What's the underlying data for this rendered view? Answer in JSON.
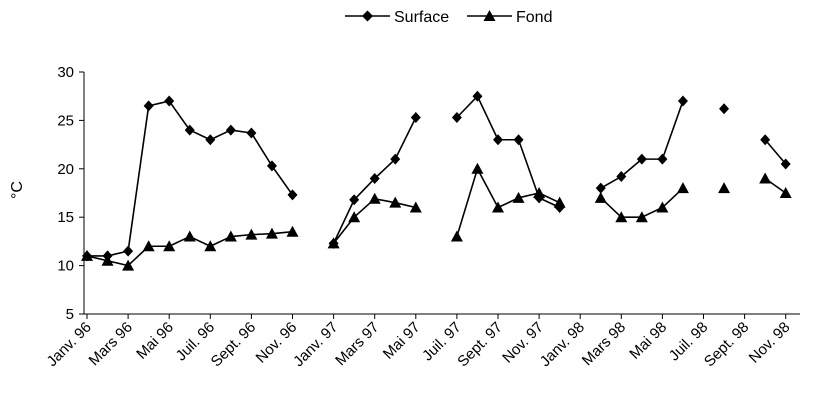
{
  "chart_data": {
    "type": "line",
    "ylabel": "°C",
    "ylim": [
      5,
      30
    ],
    "yticks": [
      5,
      10,
      15,
      20,
      25,
      30
    ],
    "grid": false,
    "legend_position": "top-center",
    "x_labels": [
      "Janv. 96",
      "Mars 96",
      "Mai 96",
      "Juil. 96",
      "Sept. 96",
      "Nov. 96",
      "Janv. 97",
      "Mars 97",
      "Mai 97",
      "Juil. 97",
      "Sept. 97",
      "Nov. 97",
      "Janv. 98",
      "Mars 98",
      "Mai 98",
      "Juil. 98",
      "Sept. 98",
      "Nov. 98"
    ],
    "months": [
      "Janv. 96",
      "Févr. 96",
      "Mars 96",
      "Avr. 96",
      "Mai 96",
      "Juin 96",
      "Juil. 96",
      "Août 96",
      "Sept. 96",
      "Oct. 96",
      "Nov. 96",
      "Déc. 96",
      "Janv. 97",
      "Févr. 97",
      "Mars 97",
      "Avr. 97",
      "Mai 97",
      "Juin 97",
      "Juil. 97",
      "Août 97",
      "Sept. 97",
      "Oct. 97",
      "Nov. 97",
      "Déc. 97",
      "Janv. 98",
      "Févr. 98",
      "Mars 98",
      "Avr. 98",
      "Mai 98",
      "Juin 98",
      "Juil. 98",
      "Août 98",
      "Sept. 98",
      "Oct. 98",
      "Nov. 98"
    ],
    "series": [
      {
        "name": "Surface",
        "marker": "diamond",
        "values": [
          11.0,
          11.0,
          11.5,
          26.5,
          27.0,
          24.0,
          23.0,
          24.0,
          23.7,
          20.3,
          17.3,
          null,
          12.3,
          16.8,
          19.0,
          21.0,
          25.3,
          null,
          25.3,
          27.5,
          23.0,
          23.0,
          17.0,
          16.0,
          null,
          18.0,
          19.2,
          21.0,
          21.0,
          27.0,
          null,
          26.2,
          null,
          23.0,
          20.5
        ]
      },
      {
        "name": "Fond",
        "marker": "triangle",
        "values": [
          11.0,
          10.5,
          10.0,
          12.0,
          12.0,
          13.0,
          12.0,
          13.0,
          13.2,
          13.3,
          13.5,
          null,
          12.3,
          15.0,
          16.9,
          16.5,
          16.0,
          null,
          13.0,
          20.0,
          16.0,
          17.0,
          17.5,
          16.5,
          null,
          17.0,
          15.0,
          15.0,
          16.0,
          18.0,
          null,
          18.0,
          null,
          19.0,
          17.5
        ]
      }
    ]
  }
}
